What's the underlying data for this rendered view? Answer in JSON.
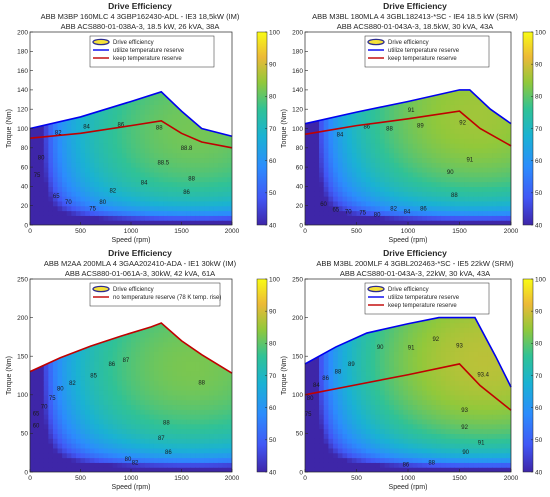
{
  "figure": {
    "panels": [
      {
        "title": "Drive Efficiency",
        "subtitle1": "ABB M3BP 160MLC 4 3GBP162430-ADL - IE3 18,5kW (IM)",
        "subtitle2": "ABB ACS880-01-038A-3, 18.5 kW, 26 kVA, 38A",
        "legend": [
          {
            "label": "Drive efficiency",
            "kind": "contour",
            "color": "#2b2b8f"
          },
          {
            "label": "utilize temperature reserve",
            "kind": "line",
            "color": "#0000ee"
          },
          {
            "label": "keep temperature reserve",
            "kind": "line",
            "color": "#c00000"
          }
        ]
      },
      {
        "title": "Drive Efficiency",
        "subtitle1": "ABB M3BL 180MLA 4 3GBL182413-*SC - IE4 18.5 kW (SRM)",
        "subtitle2": "ABB ACS880-01-043A-3, 18.5kW, 30 kVA, 43A",
        "legend": [
          {
            "label": "Drive efficiency",
            "kind": "contour",
            "color": "#2b2b8f"
          },
          {
            "label": "utilize temperature reserve",
            "kind": "line",
            "color": "#0000ee"
          },
          {
            "label": "keep temperature reserve",
            "kind": "line",
            "color": "#c00000"
          }
        ]
      },
      {
        "title": "Drive Efficiency",
        "subtitle1": "ABB M2AA 200MLA 4 3GAA202410-ADA - IE1 30kW (IM)",
        "subtitle2": "ABB ACS880-01-061A-3, 30kW, 42 kVA, 61A",
        "legend": [
          {
            "label": "Drive efficiency",
            "kind": "contour",
            "color": "#2b2b8f"
          },
          {
            "label": "no temperature reserve (78 K temp. rise)",
            "kind": "line",
            "color": "#c00000"
          }
        ]
      },
      {
        "title": "Drive Efficiency",
        "subtitle1": "ABB M3BL 200MLF 4 3GBL202463-*SC - IE5 22kW (SRM)",
        "subtitle2": "ABB ACS880-01-043A-3, 22kW, 30 kVA, 43A",
        "legend": [
          {
            "label": "Drive efficiency",
            "kind": "contour",
            "color": "#2b2b8f"
          },
          {
            "label": "utilize temperature reserve",
            "kind": "line",
            "color": "#0000ee"
          },
          {
            "label": "keep temperature reserve",
            "kind": "line",
            "color": "#c00000"
          }
        ]
      }
    ]
  },
  "chart_data": [
    {
      "type": "heatmap",
      "xlabel": "Speed (rpm)",
      "ylabel": "Torque (Nm)",
      "xlim": [
        0,
        2000
      ],
      "ylim": [
        0,
        200
      ],
      "xticks": [
        0,
        500,
        1000,
        1500,
        2000
      ],
      "yticks": [
        0,
        20,
        40,
        60,
        80,
        100,
        120,
        140,
        160,
        180,
        200
      ],
      "colorbar": {
        "min": 40,
        "max": 100,
        "ticks": [
          40,
          50,
          60,
          70,
          80,
          90,
          100
        ]
      },
      "efficiency_peak": {
        "speed": 1500,
        "torque": 80,
        "value": 89
      },
      "utilize_temperature_reserve": {
        "x": [
          0,
          500,
          1000,
          1300,
          1500,
          1700,
          2000
        ],
        "y": [
          100,
          112,
          128,
          138,
          118,
          100,
          92
        ]
      },
      "keep_temperature_reserve": {
        "x": [
          0,
          500,
          1000,
          1300,
          1500,
          1700,
          2000
        ],
        "y": [
          90,
          95,
          103,
          108,
          95,
          86,
          80
        ]
      },
      "contour_labels": [
        {
          "text": "86",
          "speed": 900,
          "torque": 104
        },
        {
          "text": "88",
          "speed": 1280,
          "torque": 101
        },
        {
          "text": "88.5",
          "speed": 1320,
          "torque": 65
        },
        {
          "text": "88.8",
          "speed": 1550,
          "torque": 80
        },
        {
          "text": "88",
          "speed": 1600,
          "torque": 48
        },
        {
          "text": "86",
          "speed": 1550,
          "torque": 34
        },
        {
          "text": "84",
          "speed": 1130,
          "torque": 44
        },
        {
          "text": "82",
          "speed": 820,
          "torque": 36
        },
        {
          "text": "80",
          "speed": 720,
          "torque": 24
        },
        {
          "text": "75",
          "speed": 620,
          "torque": 17
        },
        {
          "text": "70",
          "speed": 380,
          "torque": 24
        },
        {
          "text": "65",
          "speed": 260,
          "torque": 30
        },
        {
          "text": "80",
          "speed": 110,
          "torque": 70
        },
        {
          "text": "75",
          "speed": 70,
          "torque": 52
        },
        {
          "text": "82",
          "speed": 280,
          "torque": 96
        },
        {
          "text": "84",
          "speed": 560,
          "torque": 102
        }
      ]
    },
    {
      "type": "heatmap",
      "xlabel": "Speed (rpm)",
      "ylabel": "Torque (Nm)",
      "xlim": [
        0,
        2000
      ],
      "ylim": [
        0,
        200
      ],
      "xticks": [
        0,
        500,
        1000,
        1500,
        2000
      ],
      "yticks": [
        0,
        20,
        40,
        60,
        80,
        100,
        120,
        140,
        160,
        180,
        200
      ],
      "colorbar": {
        "min": 40,
        "max": 100,
        "ticks": [
          40,
          50,
          60,
          70,
          80,
          90,
          100
        ]
      },
      "efficiency_peak": {
        "speed": 1550,
        "torque": 100,
        "value": 92
      },
      "utilize_temperature_reserve": {
        "x": [
          0,
          500,
          1000,
          1500,
          1600,
          1800,
          2000
        ],
        "y": [
          105,
          117,
          128,
          140,
          140,
          120,
          105
        ]
      },
      "keep_temperature_reserve": {
        "x": [
          0,
          500,
          1000,
          1500,
          1700,
          2000
        ],
        "y": [
          94,
          103,
          110,
          118,
          100,
          82
        ]
      },
      "contour_labels": [
        {
          "text": "91",
          "speed": 1030,
          "torque": 119
        },
        {
          "text": "92",
          "speed": 1530,
          "torque": 106
        },
        {
          "text": "91",
          "speed": 1600,
          "torque": 68
        },
        {
          "text": "90",
          "speed": 1410,
          "torque": 55
        },
        {
          "text": "88",
          "speed": 1450,
          "torque": 31
        },
        {
          "text": "89",
          "speed": 1120,
          "torque": 103
        },
        {
          "text": "88",
          "speed": 820,
          "torque": 100
        },
        {
          "text": "86",
          "speed": 600,
          "torque": 102
        },
        {
          "text": "84",
          "speed": 340,
          "torque": 94
        },
        {
          "text": "82",
          "speed": 860,
          "torque": 17
        },
        {
          "text": "84",
          "speed": 990,
          "torque": 14
        },
        {
          "text": "86",
          "speed": 1150,
          "torque": 17
        },
        {
          "text": "80",
          "speed": 700,
          "torque": 11
        },
        {
          "text": "75",
          "speed": 560,
          "torque": 13
        },
        {
          "text": "70",
          "speed": 420,
          "torque": 14
        },
        {
          "text": "65",
          "speed": 300,
          "torque": 16
        },
        {
          "text": "60",
          "speed": 180,
          "torque": 22
        }
      ]
    },
    {
      "type": "heatmap",
      "xlabel": "Speed (rpm)",
      "ylabel": "Torque (Nm)",
      "xlim": [
        0,
        2000
      ],
      "ylim": [
        0,
        250
      ],
      "xticks": [
        0,
        500,
        1000,
        1500,
        2000
      ],
      "yticks": [
        0,
        50,
        100,
        150,
        200,
        250
      ],
      "colorbar": {
        "min": 40,
        "max": 100,
        "ticks": [
          40,
          50,
          60,
          70,
          80,
          90,
          100
        ]
      },
      "efficiency_peak": {
        "speed": 1480,
        "torque": 120,
        "value": 89
      },
      "no_temperature_reserve": {
        "x": [
          0,
          300,
          600,
          900,
          1200,
          1300,
          1500,
          1700,
          2000
        ],
        "y": [
          130,
          148,
          163,
          176,
          188,
          193,
          170,
          152,
          128
        ]
      },
      "contour_labels": [
        {
          "text": "88",
          "speed": 1700,
          "torque": 116
        },
        {
          "text": "88",
          "speed": 1350,
          "torque": 64
        },
        {
          "text": "87",
          "speed": 1300,
          "torque": 44
        },
        {
          "text": "86",
          "speed": 1370,
          "torque": 26
        },
        {
          "text": "87",
          "speed": 950,
          "torque": 145
        },
        {
          "text": "86",
          "speed": 810,
          "torque": 140
        },
        {
          "text": "85",
          "speed": 630,
          "torque": 125
        },
        {
          "text": "82",
          "speed": 420,
          "torque": 115
        },
        {
          "text": "80",
          "speed": 300,
          "torque": 108
        },
        {
          "text": "75",
          "speed": 220,
          "torque": 96
        },
        {
          "text": "70",
          "speed": 140,
          "torque": 85
        },
        {
          "text": "65",
          "speed": 60,
          "torque": 76
        },
        {
          "text": "60",
          "speed": 60,
          "torque": 60
        },
        {
          "text": "80",
          "speed": 970,
          "torque": 17
        },
        {
          "text": "82",
          "speed": 1040,
          "torque": 12
        }
      ]
    },
    {
      "type": "heatmap",
      "xlabel": "Speed (rpm)",
      "ylabel": "Torque (Nm)",
      "xlim": [
        0,
        2000
      ],
      "ylim": [
        0,
        250
      ],
      "xticks": [
        0,
        500,
        1000,
        1500,
        2000
      ],
      "yticks": [
        0,
        50,
        100,
        150,
        200,
        250
      ],
      "colorbar": {
        "min": 40,
        "max": 100,
        "ticks": [
          40,
          50,
          60,
          70,
          80,
          90,
          100
        ]
      },
      "efficiency_peak": {
        "speed": 1640,
        "torque": 130,
        "value": 94
      },
      "utilize_temperature_reserve": {
        "x": [
          0,
          300,
          600,
          1000,
          1300,
          1500,
          1650,
          1850,
          2000
        ],
        "y": [
          140,
          162,
          180,
          192,
          200,
          200,
          200,
          150,
          110
        ]
      },
      "keep_temperature_reserve": {
        "x": [
          0,
          500,
          1000,
          1500,
          1700,
          2000
        ],
        "y": [
          100,
          113,
          126,
          140,
          112,
          80
        ]
      },
      "contour_labels": [
        {
          "text": "90",
          "speed": 730,
          "torque": 162
        },
        {
          "text": "91",
          "speed": 1030,
          "torque": 161
        },
        {
          "text": "92",
          "speed": 1270,
          "torque": 172
        },
        {
          "text": "93",
          "speed": 1500,
          "torque": 164
        },
        {
          "text": "93.4",
          "speed": 1730,
          "torque": 126
        },
        {
          "text": "93",
          "speed": 1550,
          "torque": 80
        },
        {
          "text": "92",
          "speed": 1550,
          "torque": 58
        },
        {
          "text": "91",
          "speed": 1710,
          "torque": 38
        },
        {
          "text": "90",
          "speed": 1560,
          "torque": 26
        },
        {
          "text": "88",
          "speed": 1230,
          "torque": 12
        },
        {
          "text": "86",
          "speed": 980,
          "torque": 10
        },
        {
          "text": "89",
          "speed": 450,
          "torque": 140
        },
        {
          "text": "88",
          "speed": 320,
          "torque": 130
        },
        {
          "text": "86",
          "speed": 200,
          "torque": 122
        },
        {
          "text": "84",
          "speed": 110,
          "torque": 113
        },
        {
          "text": "80",
          "speed": 50,
          "torque": 96
        },
        {
          "text": "75",
          "speed": 30,
          "torque": 75
        }
      ]
    }
  ]
}
